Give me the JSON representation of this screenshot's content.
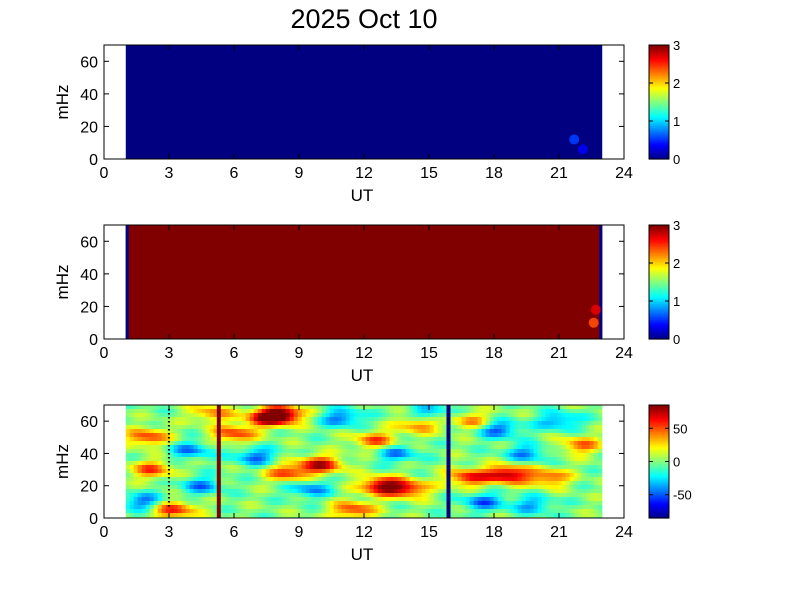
{
  "title": "2025 Oct 10",
  "colors": {
    "jet_low": "#00008f",
    "jet_high": "#800000",
    "axis": "#000000"
  },
  "chart_data": [
    {
      "type": "heatmap",
      "xlabel": "UT",
      "ylabel": "mHz",
      "xlim": [
        0,
        24
      ],
      "ylim": [
        0,
        70
      ],
      "xticks": [
        "0",
        "3",
        "6",
        "9",
        "12",
        "15",
        "18",
        "21",
        "24"
      ],
      "yticks": [
        "0",
        "20",
        "40",
        "60"
      ],
      "data_x_range": [
        1.0,
        23.0
      ],
      "colorbar": {
        "min": 0,
        "max": 3,
        "ticks": [
          "0",
          "1",
          "2",
          "3"
        ]
      },
      "background_value": 0,
      "features": [
        {
          "x": 21.7,
          "y": 12,
          "value": 0.55
        },
        {
          "x": 22.1,
          "y": 6,
          "value": 0.35
        }
      ]
    },
    {
      "type": "heatmap",
      "xlabel": "UT",
      "ylabel": "mHz",
      "xlim": [
        0,
        24
      ],
      "ylim": [
        0,
        70
      ],
      "xticks": [
        "0",
        "3",
        "6",
        "9",
        "12",
        "15",
        "18",
        "21",
        "24"
      ],
      "yticks": [
        "0",
        "20",
        "40",
        "60"
      ],
      "data_x_range": [
        1.0,
        23.0
      ],
      "colorbar": {
        "min": 0,
        "max": 3,
        "ticks": [
          "0",
          "1",
          "2",
          "3"
        ]
      },
      "background_value": 3,
      "edge_columns": [
        {
          "x": 1.05,
          "value": 0
        },
        {
          "x": 22.95,
          "value": 0
        }
      ],
      "features": [
        {
          "x": 22.6,
          "y": 10,
          "value": 2.4
        },
        {
          "x": 22.7,
          "y": 18,
          "value": 2.7
        }
      ]
    },
    {
      "type": "heatmap",
      "xlabel": "UT",
      "ylabel": "mHz",
      "xlim": [
        0,
        24
      ],
      "ylim": [
        0,
        70
      ],
      "xticks": [
        "0",
        "3",
        "6",
        "9",
        "12",
        "15",
        "18",
        "21",
        "24"
      ],
      "yticks": [
        "0",
        "20",
        "40",
        "60"
      ],
      "data_x_range": [
        1.0,
        23.0
      ],
      "colorbar": {
        "min": -85,
        "max": 85,
        "ticks": [
          "50",
          "0",
          "-50"
        ],
        "tick_values": [
          50,
          0,
          -50
        ]
      },
      "vertical_lines": [
        {
          "x": 5.3,
          "value": 85
        },
        {
          "x": 15.9,
          "value": -85
        }
      ],
      "blobs": [
        {
          "x": 8.2,
          "y": 64,
          "v": 80
        },
        {
          "x": 7.5,
          "y": 62,
          "v": 60
        },
        {
          "x": 2.0,
          "y": 50,
          "v": 55
        },
        {
          "x": 2.2,
          "y": 30,
          "v": 50
        },
        {
          "x": 1.8,
          "y": 10,
          "v": -45
        },
        {
          "x": 3.2,
          "y": 5,
          "v": 60
        },
        {
          "x": 4.0,
          "y": 42,
          "v": -40
        },
        {
          "x": 4.5,
          "y": 20,
          "v": -40
        },
        {
          "x": 6.0,
          "y": 52,
          "v": 55
        },
        {
          "x": 7.0,
          "y": 38,
          "v": -45
        },
        {
          "x": 8.5,
          "y": 28,
          "v": 55
        },
        {
          "x": 10.0,
          "y": 33,
          "v": 70
        },
        {
          "x": 9.5,
          "y": 18,
          "v": -40
        },
        {
          "x": 11.0,
          "y": 62,
          "v": -45
        },
        {
          "x": 12.5,
          "y": 48,
          "v": 50
        },
        {
          "x": 12.8,
          "y": 20,
          "v": 75
        },
        {
          "x": 14.0,
          "y": 18,
          "v": 60
        },
        {
          "x": 13.5,
          "y": 40,
          "v": -40
        },
        {
          "x": 14.5,
          "y": 58,
          "v": 45
        },
        {
          "x": 17.0,
          "y": 60,
          "v": 40
        },
        {
          "x": 18.2,
          "y": 55,
          "v": -50
        },
        {
          "x": 18.6,
          "y": 27,
          "v": 80
        },
        {
          "x": 16.8,
          "y": 25,
          "v": 60
        },
        {
          "x": 17.5,
          "y": 10,
          "v": -45
        },
        {
          "x": 19.5,
          "y": 40,
          "v": -40
        },
        {
          "x": 20.5,
          "y": 25,
          "v": 50
        },
        {
          "x": 21.0,
          "y": 60,
          "v": -40
        },
        {
          "x": 22.0,
          "y": 45,
          "v": 45
        },
        {
          "x": 11.5,
          "y": 5,
          "v": 55
        },
        {
          "x": 15.0,
          "y": 65,
          "v": -35
        },
        {
          "x": 19.8,
          "y": 8,
          "v": -35
        },
        {
          "x": 5.0,
          "y": 65,
          "v": 40
        }
      ]
    }
  ]
}
